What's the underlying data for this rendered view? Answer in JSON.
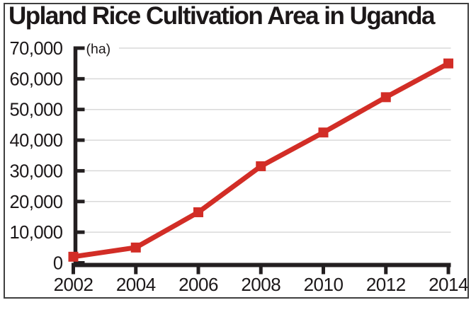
{
  "chart_data": {
    "type": "line",
    "title": "Upland Rice Cultivation Area in Uganda",
    "unit_label": "(ha)",
    "x": [
      2002,
      2004,
      2006,
      2008,
      2010,
      2012,
      2014
    ],
    "xtick_labels": [
      "2002",
      "2004",
      "2006",
      "2008",
      "2010",
      "2012",
      "2014"
    ],
    "series": [
      {
        "name": "upland-rice-cultivation-area",
        "values": [
          2000,
          5000,
          16500,
          31500,
          42500,
          54000,
          65000
        ]
      }
    ],
    "xlabel": "",
    "ylabel": "(ha)",
    "ylim": [
      0,
      70000
    ],
    "ytick_step": 10000,
    "ytick_labels": [
      "0",
      "10,000",
      "20,000",
      "30,000",
      "40,000",
      "50,000",
      "60,000",
      "70,000"
    ],
    "grid": "horizontal",
    "legend": "none",
    "marker": "square",
    "colors": {
      "line": "#d22d26",
      "marker": "#d22d26",
      "axis": "#231f20",
      "grid": "#d9d9d9",
      "text": "#1c1819",
      "frame_border": "#3f3f3f",
      "background": "#ffffff"
    }
  }
}
